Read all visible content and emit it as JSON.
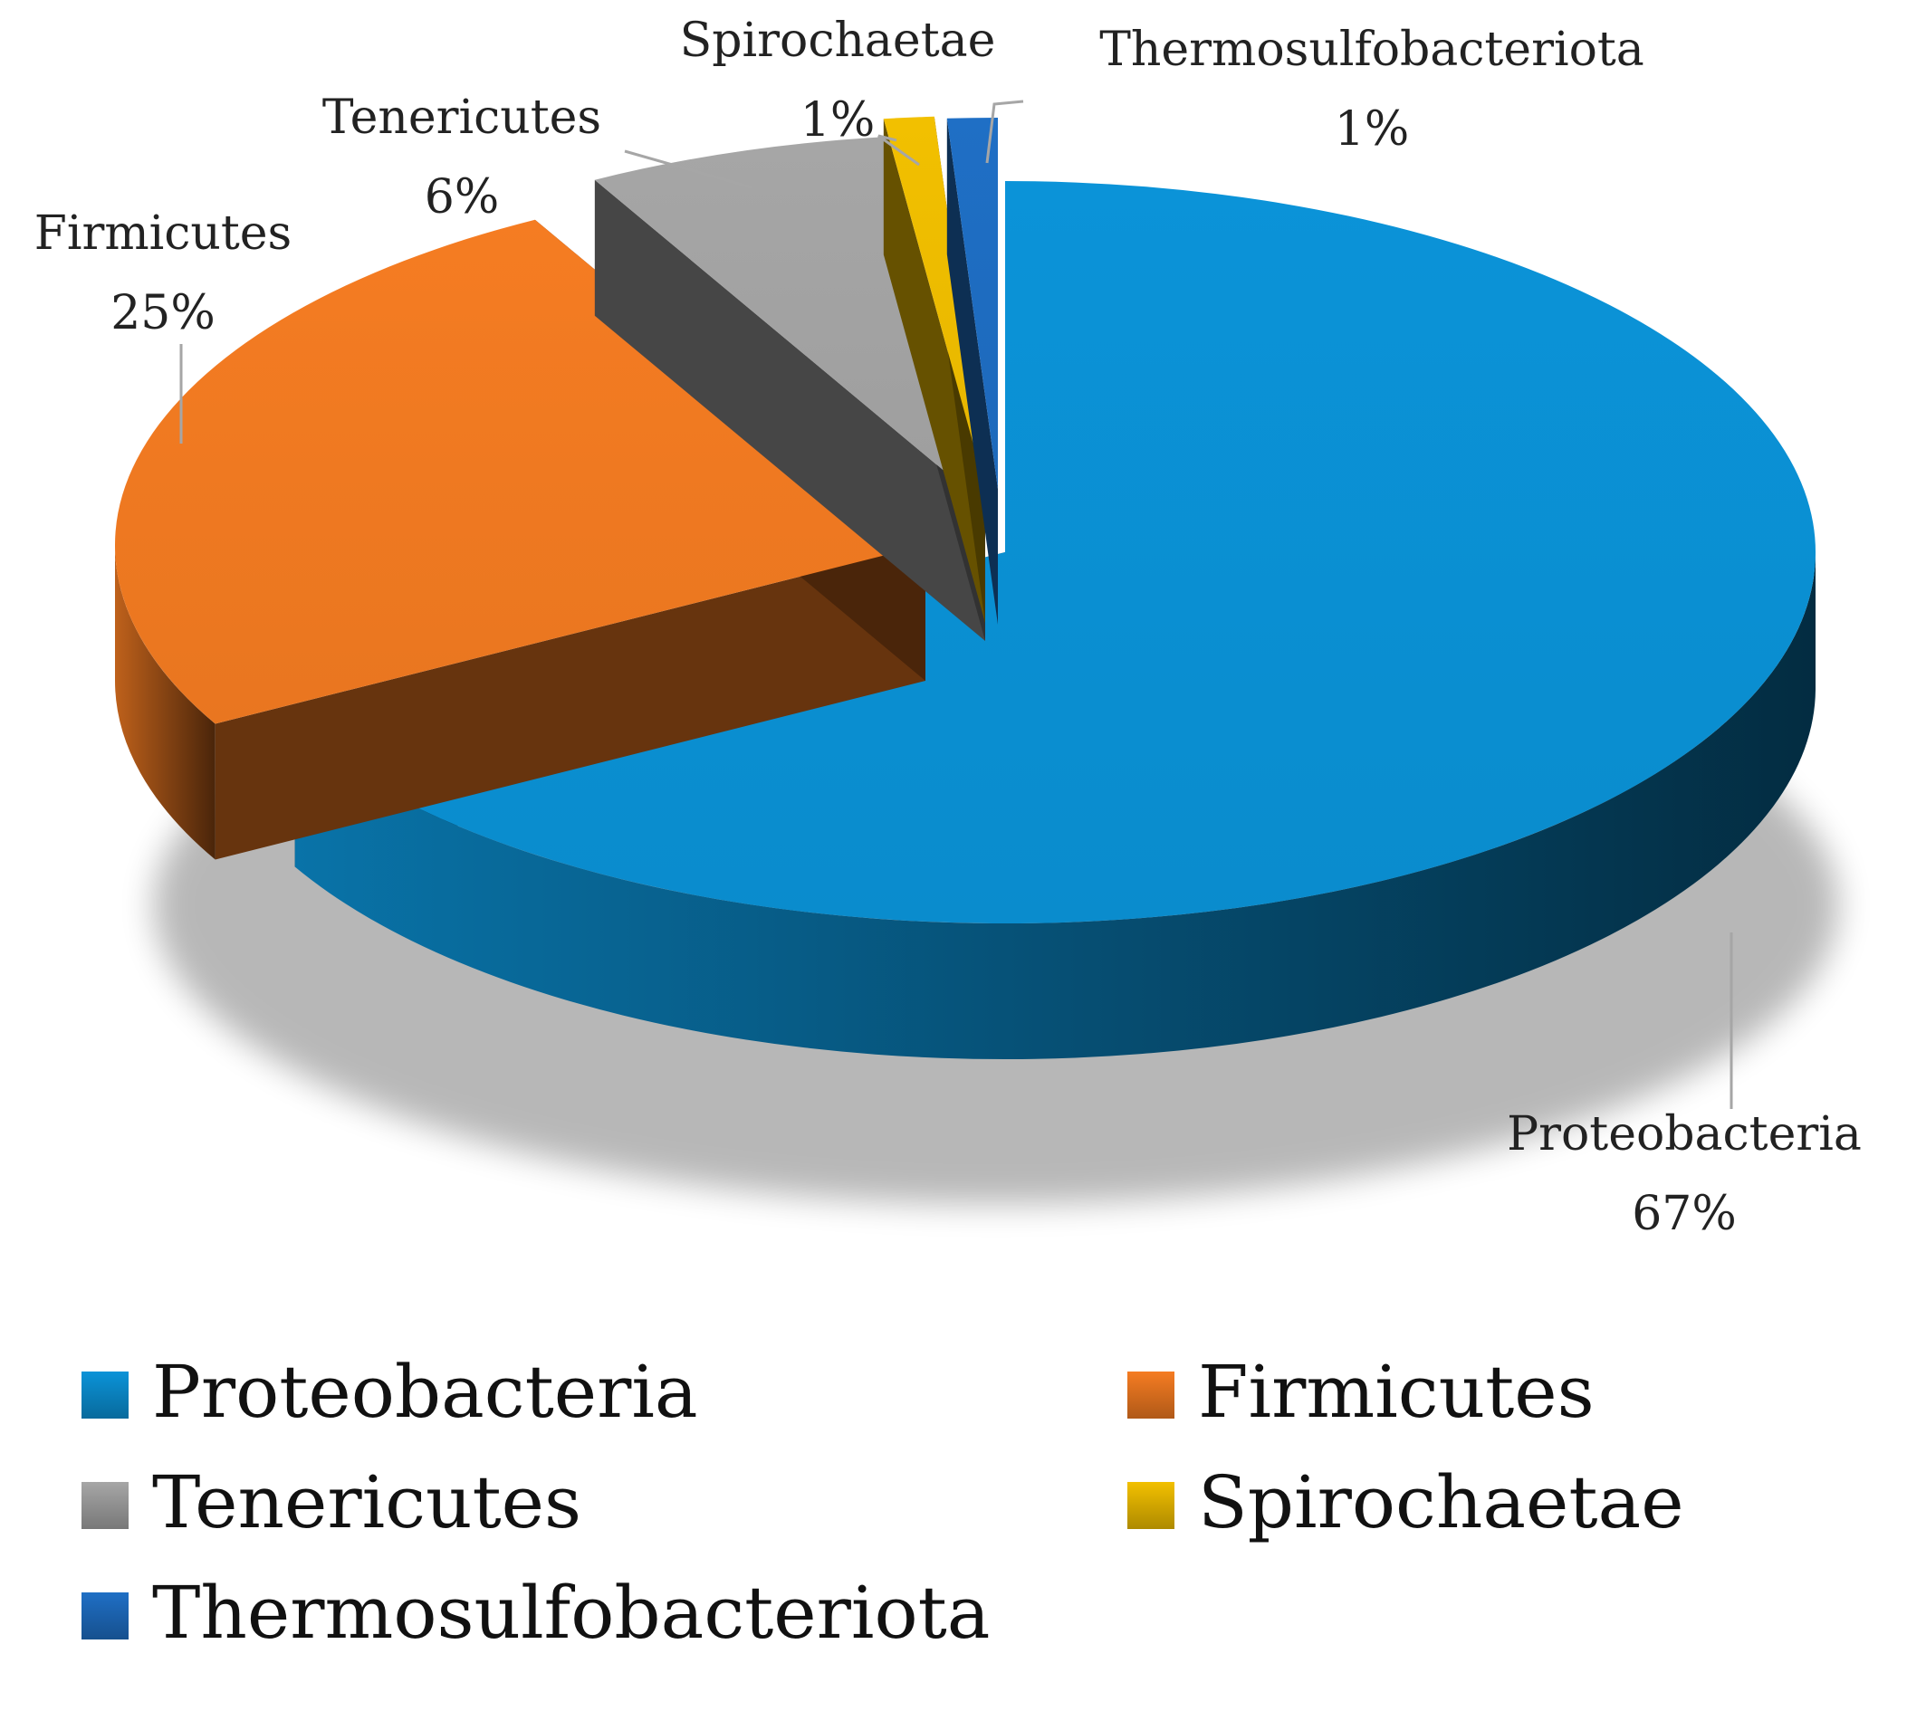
{
  "chart_data": {
    "type": "pie",
    "style": "3d-exploded",
    "categories": [
      "Proteobacteria",
      "Firmicutes",
      "Tenericutes",
      "Spirochaetae",
      "Thermosulfobacteriota"
    ],
    "values": [
      67,
      25,
      6,
      1,
      1
    ],
    "value_labels": [
      "67%",
      "25%",
      "6%",
      "1%",
      "1%"
    ],
    "colors": [
      "#0b93d8",
      "#f57c22",
      "#a6a6a6",
      "#f2c000",
      "#1f6fc5"
    ],
    "legend": {
      "placement": "bottom",
      "entries": [
        "Proteobacteria",
        "Firmicutes",
        "Tenericutes",
        "Spirochaetae",
        "Thermosulfobacteriota"
      ]
    }
  }
}
